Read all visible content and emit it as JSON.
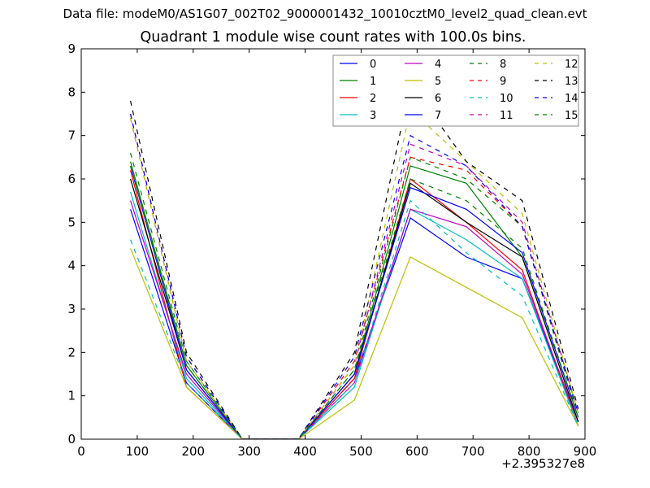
{
  "header": {
    "suptitle": "Data file: modeM0/AS1G07_002T02_9000001432_10010cztM0_level2_quad_clean.evt",
    "title": "Quadrant 1 module wise count rates with 100.0s bins.",
    "x_offset_label": "+2.395327e8"
  },
  "chart_data": {
    "type": "line",
    "title": "Quadrant 1 module wise count rates with 100.0s bins.",
    "xlabel": "",
    "ylabel": "",
    "x_offset": "+2.395327e8",
    "xlim": [
      0,
      900
    ],
    "ylim": [
      0,
      9
    ],
    "xticks": [
      0,
      100,
      200,
      300,
      400,
      500,
      600,
      700,
      800,
      900
    ],
    "yticks": [
      0,
      1,
      2,
      3,
      4,
      5,
      6,
      7,
      8,
      9
    ],
    "grid": false,
    "legend_position": "top-right",
    "x": [
      88,
      188,
      288,
      388,
      488,
      588,
      688,
      788,
      888
    ],
    "series": [
      {
        "name": "0",
        "color": "#0000ff",
        "dash": "solid",
        "values": [
          5.3,
          1.3,
          0,
          0,
          1.4,
          5.1,
          4.2,
          3.7,
          0.4
        ]
      },
      {
        "name": "1",
        "color": "#008000",
        "dash": "solid",
        "values": [
          6.4,
          1.7,
          0,
          0,
          1.5,
          6.3,
          5.9,
          4.2,
          0.4
        ]
      },
      {
        "name": "2",
        "color": "#ff0000",
        "dash": "solid",
        "values": [
          6.2,
          1.2,
          0,
          0,
          1.4,
          6.0,
          5.0,
          3.9,
          0.3
        ]
      },
      {
        "name": "3",
        "color": "#00bfbf",
        "dash": "solid",
        "values": [
          5.7,
          1.4,
          0,
          0,
          1.2,
          5.3,
          4.6,
          3.7,
          0.3
        ]
      },
      {
        "name": "4",
        "color": "#bf00bf",
        "dash": "solid",
        "values": [
          5.5,
          1.5,
          0,
          0,
          1.3,
          5.3,
          4.9,
          3.8,
          0.4
        ]
      },
      {
        "name": "5",
        "color": "#bfbf00",
        "dash": "solid",
        "values": [
          4.4,
          1.2,
          0,
          0,
          0.9,
          4.2,
          3.5,
          2.8,
          0.3
        ]
      },
      {
        "name": "6",
        "color": "#000000",
        "dash": "solid",
        "values": [
          6.0,
          1.6,
          0,
          0,
          1.5,
          5.9,
          5.0,
          4.2,
          0.4
        ]
      },
      {
        "name": "7",
        "color": "#0000ff",
        "dash": "solid",
        "values": [
          6.3,
          1.6,
          0,
          0,
          1.5,
          5.8,
          5.3,
          4.3,
          0.5
        ]
      },
      {
        "name": "8",
        "color": "#008000",
        "dash": "dashed",
        "values": [
          6.6,
          1.8,
          0,
          0,
          1.6,
          6.5,
          6.0,
          4.9,
          0.5
        ]
      },
      {
        "name": "9",
        "color": "#ff0000",
        "dash": "dashed",
        "values": [
          7.5,
          1.9,
          0,
          0,
          1.8,
          6.5,
          6.2,
          4.9,
          0.6
        ]
      },
      {
        "name": "10",
        "color": "#00bfbf",
        "dash": "dashed",
        "values": [
          4.6,
          1.3,
          0,
          0,
          1.3,
          5.5,
          4.3,
          3.3,
          0.3
        ]
      },
      {
        "name": "11",
        "color": "#bf00bf",
        "dash": "dashed",
        "values": [
          7.4,
          1.8,
          0,
          0,
          1.7,
          6.8,
          6.3,
          5.0,
          0.6
        ]
      },
      {
        "name": "12",
        "color": "#bfbf00",
        "dash": "dashed",
        "values": [
          7.4,
          1.8,
          0,
          0,
          1.7,
          7.6,
          6.4,
          5.2,
          0.6
        ]
      },
      {
        "name": "13",
        "color": "#000000",
        "dash": "dashed",
        "values": [
          7.8,
          2.0,
          0,
          0,
          2.0,
          8.2,
          6.4,
          5.5,
          0.7
        ]
      },
      {
        "name": "14",
        "color": "#0000ff",
        "dash": "dashed",
        "values": [
          7.5,
          1.9,
          0,
          0,
          1.9,
          7.0,
          6.3,
          4.9,
          0.6
        ]
      },
      {
        "name": "15",
        "color": "#008000",
        "dash": "dashed",
        "values": [
          6.3,
          1.7,
          0,
          0,
          1.6,
          6.0,
          5.5,
          4.4,
          0.5
        ]
      }
    ]
  }
}
